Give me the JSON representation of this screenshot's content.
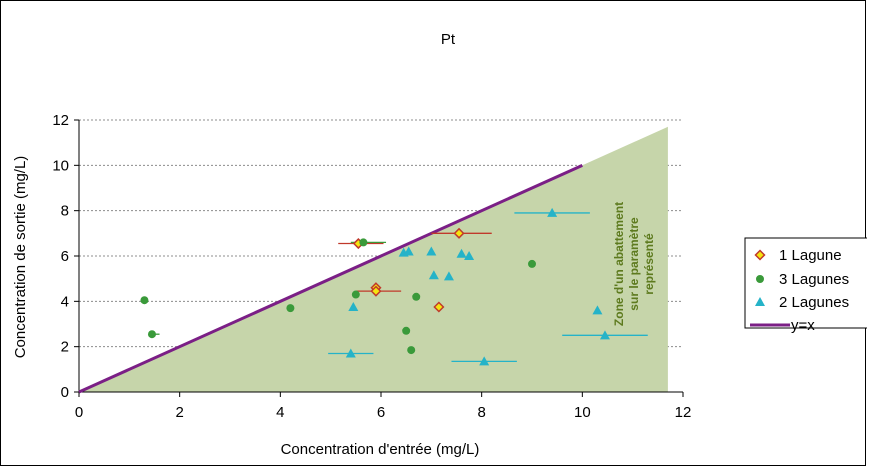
{
  "chart_data": {
    "type": "scatter",
    "title": "Pt",
    "xlabel": "Concentration d'entrée (mg/L)",
    "ylabel": "Concentration de sortie (mg/L)",
    "xlim": [
      0,
      12
    ],
    "ylim": [
      0,
      12
    ],
    "xticks": [
      0,
      2,
      4,
      6,
      8,
      10,
      12
    ],
    "yticks": [
      0,
      2,
      4,
      6,
      8,
      10,
      12
    ],
    "grid": "horizontal",
    "legend_position": "right",
    "zone_label": [
      "Zone d'un abattement",
      "sur le paramètre",
      "représenté"
    ],
    "zone_color": "#c6d5aa",
    "zone_polygon": [
      [
        0,
        0
      ],
      [
        11.7,
        11.7
      ],
      [
        11.7,
        0
      ]
    ],
    "series": [
      {
        "name": "1 Lagune",
        "marker": "diamond",
        "color": "#f5e40f",
        "edge": "#c0392b",
        "points": [
          {
            "x": 5.55,
            "y": 6.55,
            "xerr": [
              5.15,
              6.05
            ]
          },
          {
            "x": 5.9,
            "y": 4.6
          },
          {
            "x": 5.9,
            "y": 4.45,
            "xerr": [
              5.5,
              6.4
            ]
          },
          {
            "x": 7.55,
            "y": 7.0,
            "xerr": [
              7.0,
              8.2
            ]
          },
          {
            "x": 7.15,
            "y": 3.75
          }
        ]
      },
      {
        "name": "3 Lagunes",
        "marker": "circle",
        "color": "#3a9a3a",
        "points": [
          {
            "x": 1.3,
            "y": 4.05
          },
          {
            "x": 1.45,
            "y": 2.55,
            "xerr": [
              1.4,
              1.6
            ]
          },
          {
            "x": 4.2,
            "y": 3.7
          },
          {
            "x": 5.5,
            "y": 4.3
          },
          {
            "x": 5.65,
            "y": 6.6,
            "xerr": [
              5.4,
              6.1
            ]
          },
          {
            "x": 6.5,
            "y": 2.7
          },
          {
            "x": 6.6,
            "y": 1.85
          },
          {
            "x": 6.7,
            "y": 4.2
          },
          {
            "x": 9.0,
            "y": 5.65
          }
        ]
      },
      {
        "name": "2 Lagunes",
        "marker": "triangle",
        "color": "#25b3c8",
        "points": [
          {
            "x": 5.4,
            "y": 1.7,
            "xerr": [
              4.95,
              5.85
            ]
          },
          {
            "x": 5.45,
            "y": 3.75
          },
          {
            "x": 6.45,
            "y": 6.15
          },
          {
            "x": 6.55,
            "y": 6.2
          },
          {
            "x": 7.0,
            "y": 6.2
          },
          {
            "x": 7.05,
            "y": 5.15
          },
          {
            "x": 7.35,
            "y": 5.1
          },
          {
            "x": 7.6,
            "y": 6.1
          },
          {
            "x": 7.75,
            "y": 6.0
          },
          {
            "x": 8.05,
            "y": 1.35,
            "xerr": [
              7.4,
              8.7
            ]
          },
          {
            "x": 9.4,
            "y": 7.9,
            "xerr": [
              8.65,
              10.15
            ]
          },
          {
            "x": 10.3,
            "y": 3.6
          },
          {
            "x": 10.45,
            "y": 2.5,
            "xerr": [
              9.6,
              11.3
            ]
          }
        ]
      },
      {
        "name": "y=x",
        "marker": "line",
        "color": "#7b1f86",
        "x": [
          0,
          10
        ],
        "y": [
          0,
          10
        ]
      }
    ]
  }
}
